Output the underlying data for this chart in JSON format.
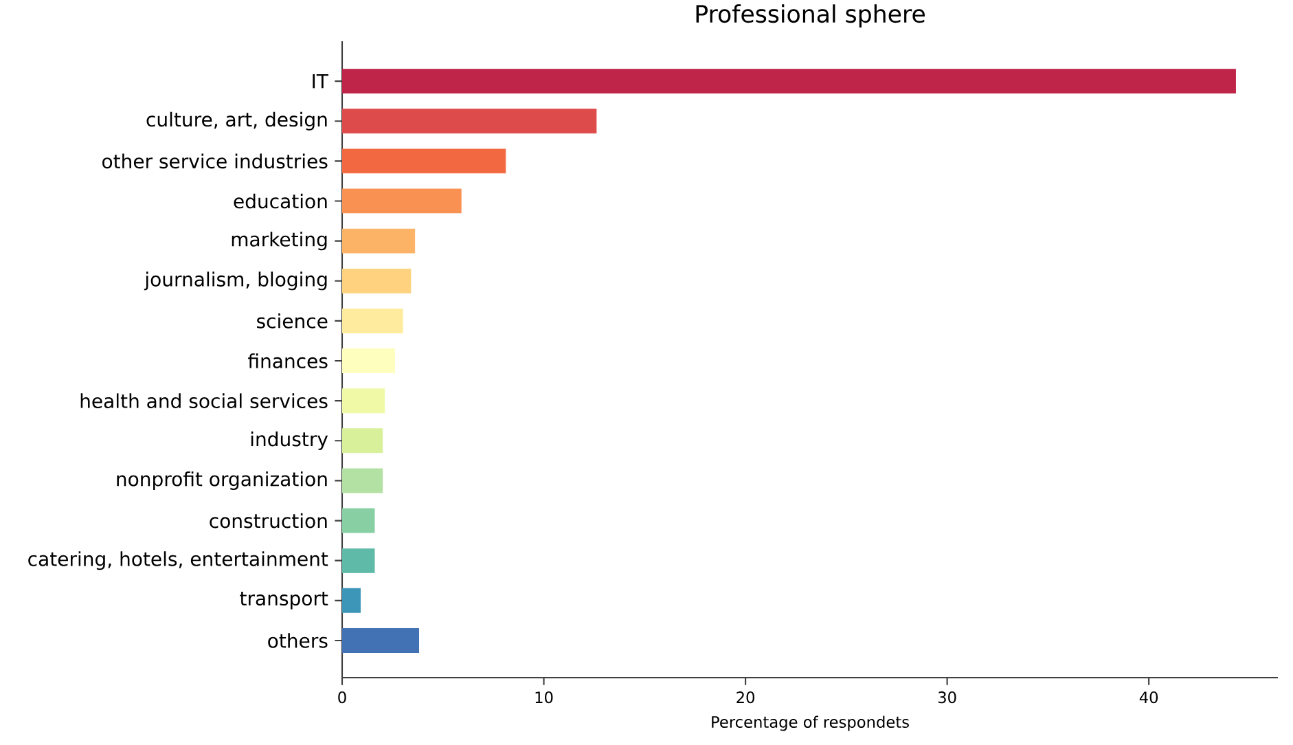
{
  "chart_data": {
    "type": "bar",
    "orientation": "horizontal",
    "title": "Professional sphere",
    "xlabel": "Percentage of respondets",
    "categories": [
      "IT",
      "culture, art, design",
      "other service industries",
      "education",
      "marketing",
      "journalism, bloging",
      "science",
      "finances",
      "health and social services",
      "industry",
      "nonprofit organization",
      "construction",
      "catering, hotels, entertainment",
      "transport",
      "others"
    ],
    "values": [
      44.3,
      12.6,
      8.1,
      5.9,
      3.6,
      3.4,
      3.0,
      2.6,
      2.1,
      2.0,
      2.0,
      1.6,
      1.6,
      0.9,
      3.8
    ],
    "colors": [
      "#bf2549",
      "#de4b4b",
      "#f26841",
      "#f99153",
      "#fdb366",
      "#fed27e",
      "#feeb9d",
      "#fefebe",
      "#f0f9a6",
      "#d9f09b",
      "#b3e0a3",
      "#88d0a4",
      "#5fbaa8",
      "#3d95b8",
      "#4272b4"
    ],
    "xlim": [
      0,
      46.4
    ],
    "xticks": [
      0,
      10,
      20,
      30,
      40
    ]
  }
}
